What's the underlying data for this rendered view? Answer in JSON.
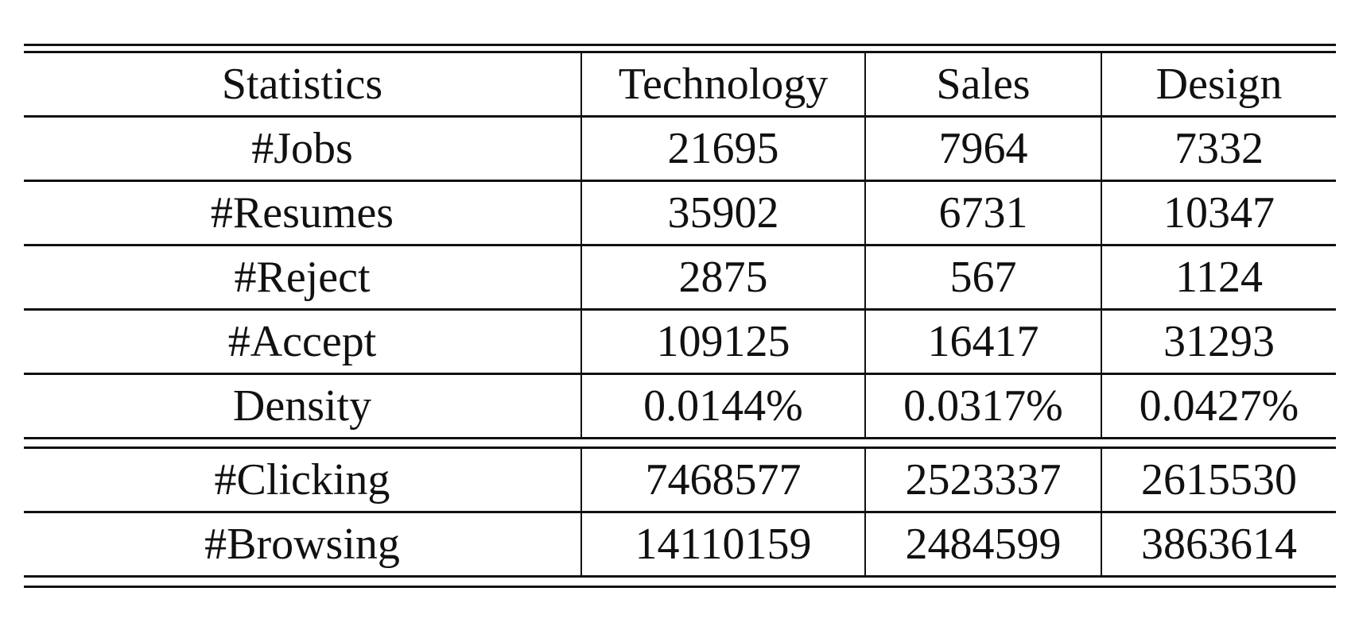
{
  "table": {
    "headers": [
      "Statistics",
      "Technology",
      "Sales",
      "Design"
    ],
    "section1": [
      {
        "label": "#Jobs",
        "values": [
          "21695",
          "7964",
          "7332"
        ]
      },
      {
        "label": "#Resumes",
        "values": [
          "35902",
          "6731",
          "10347"
        ]
      },
      {
        "label": "#Reject",
        "values": [
          "2875",
          "567",
          "1124"
        ]
      },
      {
        "label": "#Accept",
        "values": [
          "109125",
          "16417",
          "31293"
        ]
      },
      {
        "label": "Density",
        "values": [
          "0.0144%",
          "0.0317%",
          "0.0427%"
        ]
      }
    ],
    "section2": [
      {
        "label": "#Clicking",
        "values": [
          "7468577",
          "2523337",
          "2615530"
        ]
      },
      {
        "label": "#Browsing",
        "values": [
          "14110159",
          "2484599",
          "3863614"
        ]
      }
    ]
  }
}
